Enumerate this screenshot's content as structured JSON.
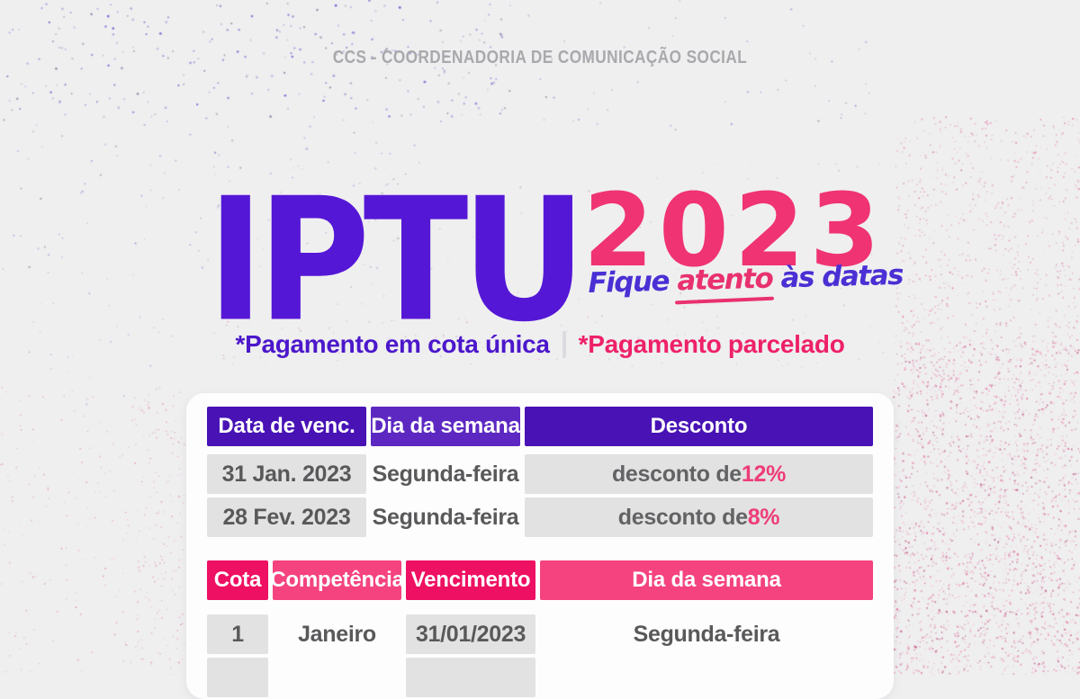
{
  "header": {
    "org_label": "CCS - COORDENADORIA DE COMUNICAÇÃO SOCIAL"
  },
  "title": {
    "main": "IPTU",
    "year": "2023",
    "tagline_part1": "Fique ",
    "tagline_highlight": "atento",
    "tagline_part2": " às datas"
  },
  "subtitle": {
    "single_label": "*Pagamento em cota única",
    "installment_label": "*Pagamento parcelado"
  },
  "single_payment_table": {
    "headers": [
      "Data de venc.",
      "Dia da semana",
      "Desconto"
    ],
    "rows": [
      {
        "date": "31 Jan. 2023",
        "weekday": "Segunda-feira",
        "discount_prefix": "desconto de ",
        "discount_value": "12%"
      },
      {
        "date": "28 Fev. 2023",
        "weekday": "Segunda-feira",
        "discount_prefix": "desconto de ",
        "discount_value": "8%"
      }
    ]
  },
  "installment_table": {
    "headers": [
      "Cota",
      "Competência",
      "Vencimento",
      "Dia da semana"
    ],
    "rows": [
      {
        "cota": "1",
        "competencia": "Janeiro",
        "vencimento": "31/01/2023",
        "weekday": "Segunda-feira"
      }
    ],
    "partial_second_row_visible": true
  },
  "colors": {
    "background": "#efeff0",
    "card": "#fdfdfd",
    "brand_purple": "#5517d6",
    "brand_pink": "#f03372",
    "table1_header_dark": "#4812b5",
    "table1_header_light": "#5d28c2",
    "table2_header_dark": "#ee1062",
    "table2_header_light": "#f4437e",
    "cell_gray": "#e2e2e2",
    "cell_text": "#59595b",
    "discount_pink": "#ee3d78",
    "org_label_gray": "#a9a9ad"
  }
}
